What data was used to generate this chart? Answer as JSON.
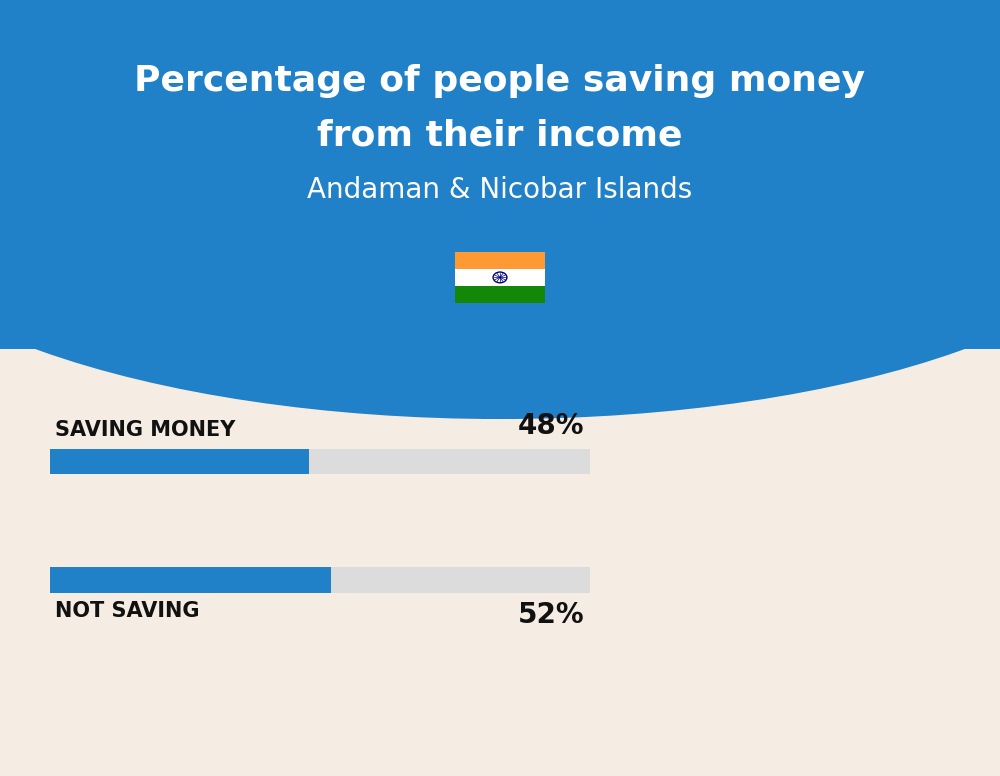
{
  "title_line1": "Percentage of people saving money",
  "title_line2": "from their income",
  "subtitle": "Andaman & Nicobar Islands",
  "background_color": "#F5EDE3",
  "header_color": "#2080C8",
  "bar_labels": [
    "SAVING MONEY",
    "NOT SAVING"
  ],
  "bar_values": [
    48,
    52
  ],
  "bar_color_filled": "#2080C8",
  "bar_color_bg": "#DCDCDC",
  "label_color": "#111111",
  "pct_color": "#111111",
  "title_color": "#FFFFFF",
  "subtitle_color": "#FFFFFF",
  "title_fontsize": 26,
  "subtitle_fontsize": 20,
  "label_fontsize": 15,
  "pct_fontsize": 20,
  "fig_width": 10.0,
  "fig_height": 7.76,
  "flag_saffron": "#FF9933",
  "flag_white": "#FFFFFF",
  "flag_green": "#138808",
  "flag_navy": "#000080"
}
